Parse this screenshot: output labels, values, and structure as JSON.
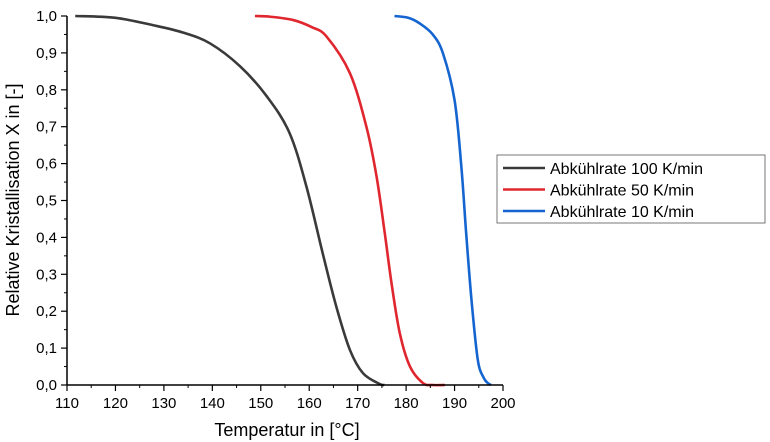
{
  "chart_data": {
    "type": "line",
    "title": "",
    "xlabel": "Temperatur in [°C]",
    "ylabel": "Relative Kristallisation X in [-]",
    "xlim": [
      110,
      200
    ],
    "ylim": [
      0,
      1
    ],
    "x_ticks": [
      "110",
      "120",
      "130",
      "140",
      "150",
      "160",
      "170",
      "180",
      "190",
      "200"
    ],
    "y_ticks": [
      "0,0",
      "0,1",
      "0,2",
      "0,3",
      "0,4",
      "0,5",
      "0,6",
      "0,7",
      "0,8",
      "0,9",
      "1,0"
    ],
    "grid": false,
    "legend_placement": "right",
    "series": [
      {
        "name": "Abkühlrate 100 K/min",
        "color": "#3a3a3a",
        "x": [
          111.7,
          120,
          127.8,
          134,
          139.5,
          145.7,
          151.2,
          155.9,
          159.4,
          162.8,
          165.6,
          168.4,
          171.1,
          174.5,
          175.5
        ],
        "y": [
          1.0,
          0.995,
          0.975,
          0.955,
          0.926,
          0.864,
          0.783,
          0.684,
          0.539,
          0.356,
          0.212,
          0.095,
          0.032,
          0.003,
          0.0
        ]
      },
      {
        "name": "Abkühlrate 50 K/min",
        "color": "#e0262e",
        "x": [
          148.8,
          152,
          156.7,
          160.5,
          163.6,
          168.4,
          171.8,
          173.9,
          175.6,
          177.0,
          178.7,
          180.8,
          183.5,
          185.5,
          188
        ],
        "y": [
          1.0,
          0.998,
          0.989,
          0.97,
          0.944,
          0.845,
          0.7,
          0.565,
          0.411,
          0.275,
          0.14,
          0.05,
          0.005,
          0.0,
          0.0
        ]
      },
      {
        "name": "Abkühlrate 10 K/min",
        "color": "#1565d0",
        "x": [
          177.6,
          180.5,
          182.8,
          185.5,
          187.6,
          190.0,
          191.4,
          192.4,
          193.5,
          194.8,
          196.0,
          196.9,
          197.5
        ],
        "y": [
          1.0,
          0.995,
          0.98,
          0.95,
          0.899,
          0.772,
          0.592,
          0.411,
          0.23,
          0.068,
          0.02,
          0.005,
          0.0
        ]
      }
    ]
  }
}
